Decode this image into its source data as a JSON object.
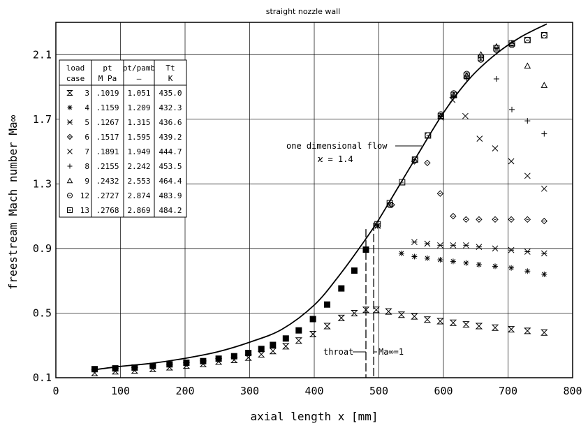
{
  "chart_data": {
    "type": "scatter",
    "title": "straight nozzle wall",
    "xlabel": "axial length x [mm]",
    "ylabel": "freestream Mach number Ma∞",
    "xlim": [
      0,
      800
    ],
    "ylim": [
      0.1,
      2.3
    ],
    "x_ticks": [
      "0",
      "100",
      "200",
      "300",
      "400",
      "500",
      "600",
      "700",
      "800"
    ],
    "y_ticks": [
      "0.1",
      "0.5",
      "0.9",
      "1.3",
      "1.7",
      "2.1"
    ],
    "grid": true,
    "legend_table": {
      "placement": "top-left",
      "headers": [
        [
          "load",
          "case"
        ],
        [
          "pt",
          "M Pa"
        ],
        [
          "pt/pamb",
          "—"
        ],
        [
          "Tt",
          "K"
        ]
      ],
      "rows": [
        {
          "marker": "hourglass",
          "case": "3",
          "pt": ".1019",
          "ratio": "1.051",
          "Tt": "435.0"
        },
        {
          "marker": "asterisk",
          "case": "4",
          "pt": ".1159",
          "ratio": "1.209",
          "Tt": "432.3"
        },
        {
          "marker": "xbar",
          "case": "5",
          "pt": ".1267",
          "ratio": "1.315",
          "Tt": "436.6"
        },
        {
          "marker": "diamond",
          "case": "6",
          "pt": ".1517",
          "ratio": "1.595",
          "Tt": "439.2"
        },
        {
          "marker": "x",
          "case": "7",
          "pt": ".1891",
          "ratio": "1.949",
          "Tt": "444.7"
        },
        {
          "marker": "plus",
          "case": "8",
          "pt": ".2155",
          "ratio": "2.242",
          "Tt": "453.5"
        },
        {
          "marker": "triangle",
          "case": "9",
          "pt": ".2432",
          "ratio": "2.553",
          "Tt": "464.4"
        },
        {
          "marker": "circle",
          "case": "12",
          "pt": ".2727",
          "ratio": "2.874",
          "Tt": "483.9"
        },
        {
          "marker": "square",
          "case": "13",
          "pt": ".2768",
          "ratio": "2.869",
          "Tt": "484.2"
        }
      ]
    },
    "annotations": {
      "one_dim_flow": "one dimensional flow",
      "kappa": "ϰ = 1.4",
      "throat": "throat",
      "ma_one": "Ma∞=1",
      "throat_x": 480,
      "ma_one_x": 492
    },
    "line": {
      "name": "one dimensional flow",
      "x": [
        60,
        100,
        150,
        200,
        250,
        300,
        350,
        400,
        440,
        480,
        500,
        530,
        560,
        600,
        640,
        680,
        720,
        760
      ],
      "y": [
        0.15,
        0.17,
        0.19,
        0.22,
        0.26,
        0.32,
        0.4,
        0.55,
        0.74,
        0.96,
        1.08,
        1.28,
        1.48,
        1.74,
        1.95,
        2.1,
        2.21,
        2.29
      ]
    },
    "upstream_common": {
      "x": [
        60,
        92,
        122,
        150,
        176,
        202,
        228,
        252,
        276,
        298,
        318,
        336,
        356,
        376,
        398,
        420,
        442,
        462,
        480
      ],
      "y": [
        0.153,
        0.158,
        0.163,
        0.173,
        0.183,
        0.193,
        0.203,
        0.218,
        0.233,
        0.253,
        0.278,
        0.303,
        0.343,
        0.393,
        0.463,
        0.553,
        0.653,
        0.763,
        0.893
      ]
    },
    "series": [
      {
        "name": "3",
        "marker": "hourglass",
        "x": [
          60,
          92,
          122,
          150,
          176,
          202,
          228,
          252,
          276,
          298,
          318,
          336,
          356,
          376,
          398,
          420,
          442,
          462,
          480,
          496,
          515,
          535,
          555,
          575,
          595,
          615,
          635,
          655,
          680,
          705,
          730,
          756
        ],
        "y": [
          0.13,
          0.14,
          0.145,
          0.155,
          0.165,
          0.175,
          0.185,
          0.2,
          0.21,
          0.225,
          0.245,
          0.265,
          0.295,
          0.33,
          0.37,
          0.42,
          0.47,
          0.5,
          0.52,
          0.52,
          0.51,
          0.49,
          0.48,
          0.46,
          0.45,
          0.44,
          0.43,
          0.42,
          0.41,
          0.4,
          0.39,
          0.38
        ]
      },
      {
        "name": "4",
        "marker": "asterisk",
        "x": [
          498,
          535,
          555,
          575,
          595,
          615,
          635,
          655,
          680,
          705,
          730,
          756
        ],
        "y": [
          1.04,
          0.87,
          0.85,
          0.84,
          0.83,
          0.82,
          0.81,
          0.8,
          0.79,
          0.78,
          0.76,
          0.74
        ]
      },
      {
        "name": "5",
        "marker": "xbar",
        "x": [
          498,
          555,
          575,
          595,
          615,
          635,
          655,
          680,
          705,
          730,
          756
        ],
        "y": [
          1.04,
          0.94,
          0.93,
          0.92,
          0.92,
          0.92,
          0.91,
          0.9,
          0.89,
          0.88,
          0.87
        ]
      },
      {
        "name": "6",
        "marker": "diamond",
        "x": [
          520,
          555,
          575,
          595,
          615,
          635,
          655,
          680,
          705,
          730,
          756
        ],
        "y": [
          1.17,
          1.44,
          1.43,
          1.24,
          1.1,
          1.08,
          1.08,
          1.08,
          1.08,
          1.08,
          1.07
        ]
      },
      {
        "name": "7",
        "marker": "x",
        "x": [
          596,
          614,
          634,
          656,
          680,
          705,
          730,
          756
        ],
        "y": [
          1.71,
          1.82,
          1.72,
          1.58,
          1.52,
          1.44,
          1.35,
          1.27
        ]
      },
      {
        "name": "8",
        "marker": "plus",
        "x": [
          596,
          616,
          636,
          658,
          682,
          706,
          730,
          756
        ],
        "y": [
          1.72,
          1.84,
          1.95,
          2.08,
          1.95,
          1.76,
          1.69,
          1.61
        ]
      },
      {
        "name": "9",
        "marker": "triangle",
        "x": [
          596,
          616,
          636,
          658,
          682,
          706,
          730,
          756
        ],
        "y": [
          1.72,
          1.85,
          1.97,
          2.1,
          2.15,
          2.17,
          2.03,
          1.91
        ]
      },
      {
        "name": "12",
        "marker": "circle",
        "x": [
          517,
          556,
          576,
          596,
          616,
          636,
          658,
          682,
          706,
          730,
          756
        ],
        "y": [
          1.17,
          1.45,
          1.6,
          1.73,
          1.86,
          1.98,
          2.07,
          2.13,
          2.16,
          2.19,
          2.22
        ]
      },
      {
        "name": "13",
        "marker": "square",
        "x": [
          498,
          517,
          536,
          556,
          576,
          596,
          616,
          636,
          658,
          682,
          706,
          730,
          756
        ],
        "y": [
          1.05,
          1.18,
          1.31,
          1.45,
          1.6,
          1.72,
          1.85,
          1.97,
          2.08,
          2.14,
          2.17,
          2.19,
          2.22
        ]
      }
    ]
  }
}
